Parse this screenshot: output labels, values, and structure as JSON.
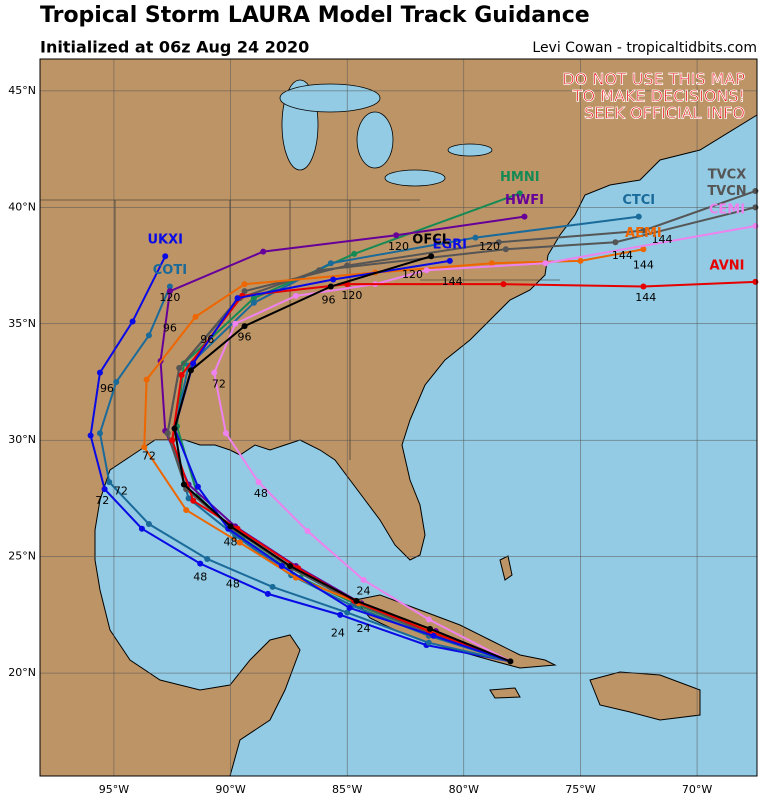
{
  "title": "Tropical Storm LAURA Model Track Guidance",
  "subtitle": "Initialized at 06z Aug 24 2020",
  "credit": "Levi Cowan - tropicaltidbits.com",
  "warning": [
    "DO NOT USE THIS MAP",
    "TO MAKE DECISIONS!",
    "SEEK OFFICIAL INFO"
  ],
  "xlim": [
    -98.17,
    -67.43
  ],
  "ylim": [
    15.58,
    46.37
  ],
  "xticks": [
    {
      "value": -95,
      "label": "95°W"
    },
    {
      "value": -90,
      "label": "90°W"
    },
    {
      "value": -85,
      "label": "85°W"
    },
    {
      "value": -80,
      "label": "80°W"
    },
    {
      "value": -75,
      "label": "75°W"
    },
    {
      "value": -70,
      "label": "70°W"
    }
  ],
  "yticks": [
    {
      "value": 20,
      "label": "20°N"
    },
    {
      "value": 25,
      "label": "25°N"
    },
    {
      "value": 30,
      "label": "30°N"
    },
    {
      "value": 35,
      "label": "35°N"
    },
    {
      "value": 40,
      "label": "40°N"
    },
    {
      "value": 45,
      "label": "45°N"
    }
  ],
  "tracks": [
    {
      "name": "UKXI",
      "color": "#0a0ae6",
      "lon": [
        -78,
        -81.6,
        -85.3,
        -88.4,
        -91.3,
        -93.8,
        -95.4,
        -96.0,
        -95.6,
        -94.2,
        -92.8
      ],
      "lat": [
        20.5,
        21.2,
        22.5,
        23.4,
        24.7,
        26.2,
        27.9,
        30.2,
        32.9,
        35.1,
        37.9
      ]
    },
    {
      "name": "COTI",
      "color": "#1a6a9a",
      "lon": [
        -78,
        -81.5,
        -85.0,
        -88.2,
        -91.0,
        -93.5,
        -95.2,
        -95.6,
        -94.9,
        -93.5,
        -92.6
      ],
      "lat": [
        20.5,
        21.3,
        22.6,
        23.7,
        24.9,
        26.4,
        28.2,
        30.3,
        32.5,
        34.5,
        36.6
      ]
    },
    {
      "name": "HMNI",
      "color": "#168a55",
      "lon": [
        -78,
        -81.5,
        -84.5,
        -87.0,
        -89.5,
        -91.4,
        -92.3,
        -92.0,
        -89.0,
        -84.7,
        -77.6
      ],
      "lat": [
        20.5,
        21.7,
        22.9,
        24.1,
        25.8,
        27.6,
        30.6,
        33.3,
        36.1,
        38.0,
        40.6
      ]
    },
    {
      "name": "HWFI",
      "color": "#660099",
      "lon": [
        -78,
        -81.2,
        -84.4,
        -87.2,
        -89.8,
        -91.8,
        -92.8,
        -93.0,
        -92.6,
        -88.6,
        -82.9,
        -77.4
      ],
      "lat": [
        20.5,
        21.8,
        23.0,
        24.6,
        26.3,
        28.1,
        30.4,
        33.4,
        36.4,
        38.1,
        38.8,
        39.6
      ]
    },
    {
      "name": "CTCI",
      "color": "#1a6a9a",
      "lon": [
        -78,
        -81.5,
        -84.8,
        -87.4,
        -89.8,
        -91.8,
        -92.5,
        -91.8,
        -89.0,
        -85.7,
        -79.5,
        -72.5
      ],
      "lat": [
        20.5,
        21.6,
        22.9,
        24.2,
        25.9,
        27.5,
        30.0,
        33.2,
        35.9,
        37.6,
        38.7,
        39.6
      ]
    },
    {
      "name": "TVCX",
      "color": "#555555",
      "lon": [
        -78,
        -81.5,
        -84.6,
        -87.4,
        -89.9,
        -91.9,
        -92.7,
        -92.2,
        -89.4,
        -85.0,
        -78.5,
        -72.3,
        -67.5
      ],
      "lat": [
        20.5,
        21.7,
        23.0,
        24.5,
        26.2,
        27.9,
        30.3,
        33.1,
        36.4,
        37.5,
        38.5,
        39.0,
        40.7
      ]
    },
    {
      "name": "TVCN",
      "color": "#555555",
      "lon": [
        -78,
        -81.5,
        -84.6,
        -87.4,
        -89.9,
        -91.9,
        -92.7,
        -92.2,
        -89.6,
        -86.2,
        -78.2,
        -73.5,
        -67.5
      ],
      "lat": [
        20.5,
        21.7,
        23.0,
        24.5,
        26.2,
        27.9,
        30.3,
        33.1,
        36.1,
        37.3,
        38.2,
        38.5,
        40.0
      ]
    },
    {
      "name": "AEMI",
      "color": "#ee6600",
      "lon": [
        -78,
        -81.4,
        -84.5,
        -87.2,
        -89.6,
        -91.9,
        -93.7,
        -93.6,
        -91.5,
        -89.4,
        -83.8,
        -78.8,
        -75.0,
        -72.3
      ],
      "lat": [
        20.5,
        21.8,
        23.0,
        24.1,
        25.6,
        27.0,
        29.7,
        32.6,
        35.3,
        36.7,
        37.2,
        37.6,
        37.7,
        38.2
      ]
    },
    {
      "name": "CEMI",
      "color": "#ee82ee",
      "lon": [
        -78,
        -81.5,
        -84.3,
        -86.7,
        -88.8,
        -90.2,
        -90.7,
        -89.8,
        -87.2,
        -83.8,
        -81.6,
        -76.5,
        -67.5
      ],
      "lat": [
        20.5,
        22.3,
        24.0,
        26.1,
        28.2,
        30.3,
        32.9,
        35.0,
        36.2,
        36.7,
        37.3,
        37.6,
        39.2
      ]
    },
    {
      "name": "AVNI",
      "color": "#e60000",
      "lon": [
        -78,
        -81.5,
        -84.7,
        -87.1,
        -89.7,
        -91.6,
        -92.5,
        -92.1,
        -89.5,
        -85.0,
        -78.3,
        -72.3,
        -67.5
      ],
      "lat": [
        20.5,
        21.8,
        23.1,
        24.5,
        26.2,
        27.4,
        30.0,
        32.8,
        36.2,
        36.7,
        36.7,
        36.6,
        36.8
      ]
    },
    {
      "name": "EGRI",
      "color": "#0a0ae6",
      "lon": [
        -78,
        -81.3,
        -84.9,
        -87.8,
        -90.1,
        -91.4,
        -92.4,
        -91.6,
        -89.7,
        -85.6,
        -80.6
      ],
      "lat": [
        20.5,
        21.6,
        22.8,
        24.6,
        26.2,
        28.0,
        30.5,
        33.3,
        36.1,
        36.9,
        37.7
      ]
    },
    {
      "name": "OFCL",
      "color": "#000000",
      "lon": [
        -78,
        -81.45,
        -84.6,
        -87.45,
        -90.0,
        -92.0,
        -92.4,
        -91.7,
        -89.4,
        -85.7,
        -81.4
      ],
      "lat": [
        20.5,
        21.9,
        23.1,
        24.6,
        26.3,
        28.1,
        30.5,
        33.0,
        34.9,
        36.6,
        37.9
      ]
    }
  ],
  "hour_labels": [
    {
      "hour": 24,
      "lon": -84.3,
      "lat": 23.5
    },
    {
      "hour": 24,
      "lon": -84.3,
      "lat": 21.9
    },
    {
      "hour": 24,
      "lon": -85.4,
      "lat": 21.7
    },
    {
      "hour": 48,
      "lon": -89.9,
      "lat": 23.8
    },
    {
      "hour": 48,
      "lon": -91.3,
      "lat": 24.1
    },
    {
      "hour": 48,
      "lon": -88.7,
      "lat": 27.7
    },
    {
      "hour": 48,
      "lon": -90.0,
      "lat": 25.6
    },
    {
      "hour": 72,
      "lon": -90.5,
      "lat": 32.4
    },
    {
      "hour": 72,
      "lon": -95.5,
      "lat": 27.4
    },
    {
      "hour": 72,
      "lon": -93.5,
      "lat": 29.3
    },
    {
      "hour": 72,
      "lon": -94.7,
      "lat": 27.8
    },
    {
      "hour": 96,
      "lon": -89.4,
      "lat": 34.4
    },
    {
      "hour": 96,
      "lon": -85.8,
      "lat": 36.0
    },
    {
      "hour": 96,
      "lon": -95.3,
      "lat": 32.2
    },
    {
      "hour": 96,
      "lon": -91.0,
      "lat": 34.3
    },
    {
      "hour": 96,
      "lon": -92.6,
      "lat": 34.8
    },
    {
      "hour": 120,
      "lon": -84.8,
      "lat": 36.2
    },
    {
      "hour": 120,
      "lon": -92.6,
      "lat": 36.1
    },
    {
      "hour": 120,
      "lon": -78.9,
      "lat": 38.3
    },
    {
      "hour": 120,
      "lon": -82.2,
      "lat": 37.1
    },
    {
      "hour": 120,
      "lon": -82.8,
      "lat": 38.3
    },
    {
      "hour": 144,
      "lon": -80.5,
      "lat": 36.8
    },
    {
      "hour": 144,
      "lon": -72.2,
      "lat": 36.1
    },
    {
      "hour": 144,
      "lon": -73.2,
      "lat": 37.9
    },
    {
      "hour": 144,
      "lon": -71.5,
      "lat": 38.6
    },
    {
      "hour": 144,
      "lon": -72.3,
      "lat": 37.5
    }
  ]
}
